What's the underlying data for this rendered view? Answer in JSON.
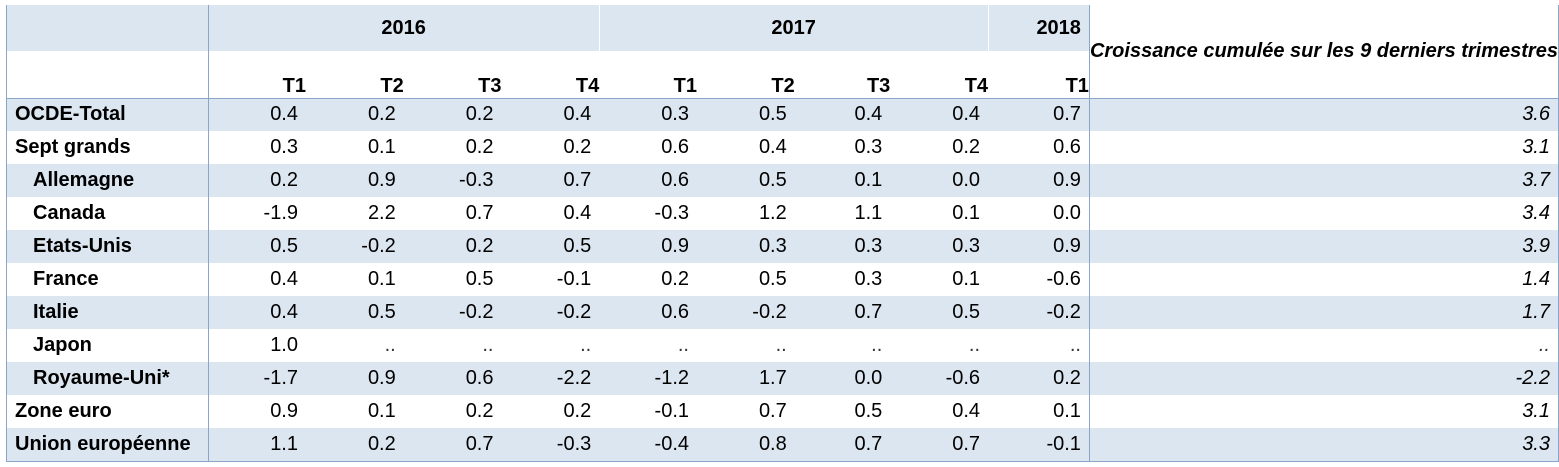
{
  "headers": {
    "years": [
      "2016",
      "2017",
      "2018"
    ],
    "quarters": [
      "T1",
      "T2",
      "T3",
      "T4",
      "T1",
      "T2",
      "T3",
      "T4",
      "T1"
    ],
    "cumulative": "Croissance cumulée sur les 9 derniers trimestres"
  },
  "rows": [
    {
      "label": "OCDE-Total",
      "indent": false,
      "values": [
        "0.4",
        "0.2",
        "0.2",
        "0.4",
        "0.3",
        "0.5",
        "0.4",
        "0.4",
        "0.7"
      ],
      "cumulative": "3.6"
    },
    {
      "label": "Sept grands",
      "indent": false,
      "values": [
        "0.3",
        "0.1",
        "0.2",
        "0.2",
        "0.6",
        "0.4",
        "0.3",
        "0.2",
        "0.6"
      ],
      "cumulative": "3.1"
    },
    {
      "label": "Allemagne",
      "indent": true,
      "values": [
        "0.2",
        "0.9",
        "-0.3",
        "0.7",
        "0.6",
        "0.5",
        "0.1",
        "0.0",
        "0.9"
      ],
      "cumulative": "3.7"
    },
    {
      "label": "Canada",
      "indent": true,
      "values": [
        "-1.9",
        "2.2",
        "0.7",
        "0.4",
        "-0.3",
        "1.2",
        "1.1",
        "0.1",
        "0.0"
      ],
      "cumulative": "3.4"
    },
    {
      "label": "Etats-Unis",
      "indent": true,
      "values": [
        "0.5",
        "-0.2",
        "0.2",
        "0.5",
        "0.9",
        "0.3",
        "0.3",
        "0.3",
        "0.9"
      ],
      "cumulative": "3.9"
    },
    {
      "label": "France",
      "indent": true,
      "values": [
        "0.4",
        "0.1",
        "0.5",
        "-0.1",
        "0.2",
        "0.5",
        "0.3",
        "0.1",
        "-0.6"
      ],
      "cumulative": "1.4"
    },
    {
      "label": "Italie",
      "indent": true,
      "values": [
        "0.4",
        "0.5",
        "-0.2",
        "-0.2",
        "0.6",
        "-0.2",
        "0.7",
        "0.5",
        "-0.2"
      ],
      "cumulative": "1.7"
    },
    {
      "label": "Japon",
      "indent": true,
      "values": [
        "1.0",
        "..",
        "..",
        "..",
        "..",
        "..",
        "..",
        "..",
        ".."
      ],
      "cumulative": ".."
    },
    {
      "label": "Royaume-Uni*",
      "indent": true,
      "values": [
        "-1.7",
        "0.9",
        "0.6",
        "-2.2",
        "-1.2",
        "1.7",
        "0.0",
        "-0.6",
        "0.2"
      ],
      "cumulative": "-2.2"
    },
    {
      "label": "Zone euro",
      "indent": false,
      "values": [
        "0.9",
        "0.1",
        "0.2",
        "0.2",
        "-0.1",
        "0.7",
        "0.5",
        "0.4",
        "0.1"
      ],
      "cumulative": "3.1"
    },
    {
      "label": "Union européenne",
      "indent": false,
      "values": [
        "1.1",
        "0.2",
        "0.7",
        "-0.3",
        "-0.4",
        "0.8",
        "0.7",
        "0.7",
        "-0.1"
      ],
      "cumulative": "3.3"
    }
  ],
  "colors": {
    "shade": "#dce6f1",
    "grid": "#8aa5c8"
  }
}
